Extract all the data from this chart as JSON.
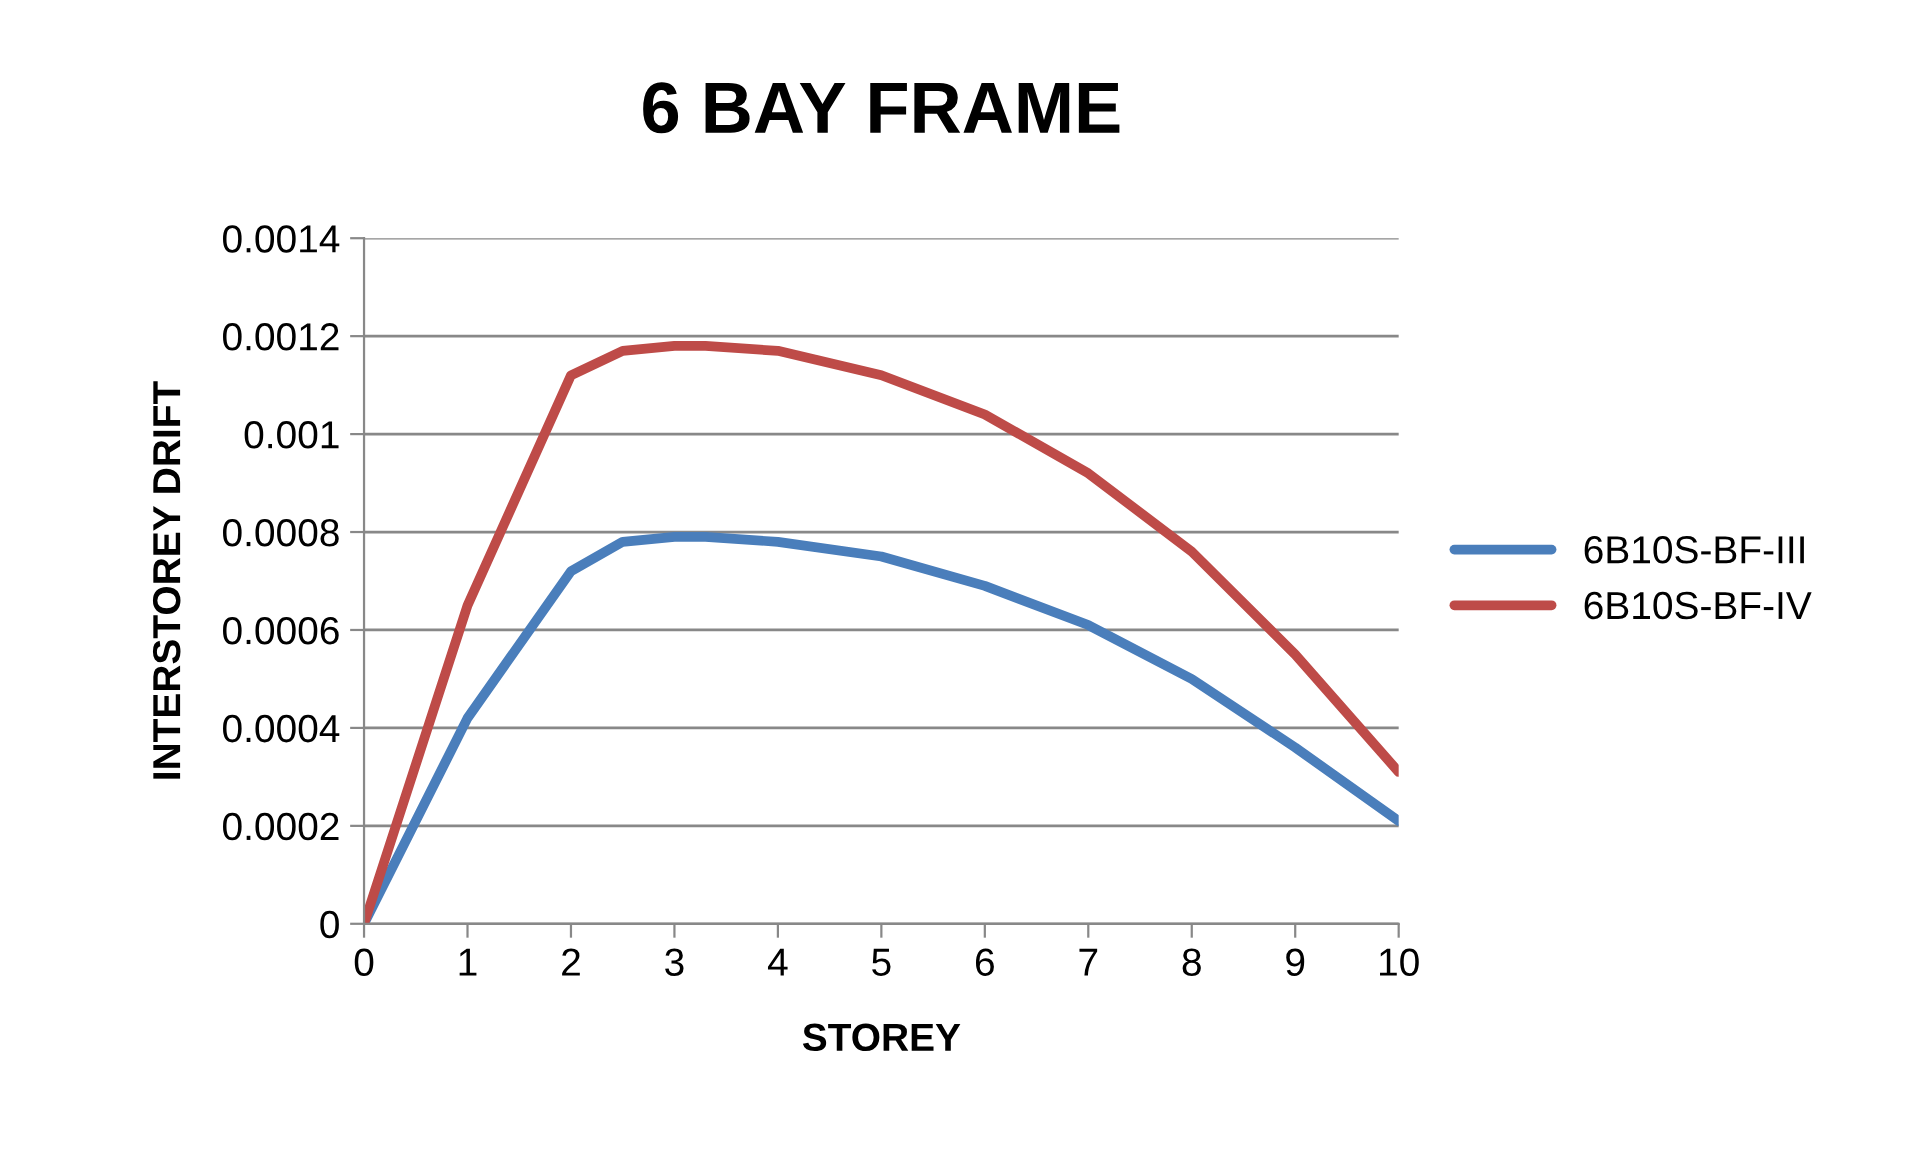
{
  "chart_data": {
    "type": "line",
    "title": "6 BAY FRAME",
    "xlabel": "STOREY",
    "ylabel": "INTERSTOREY DRIFT",
    "x": [
      0,
      1,
      2,
      2.5,
      3,
      3.3,
      4,
      5,
      6,
      7,
      8,
      9,
      10
    ],
    "series": [
      {
        "name": "6B10S-BF-III",
        "color": "#4a7ebb",
        "values": [
          0,
          0.00042,
          0.00072,
          0.00078,
          0.00079,
          0.00079,
          0.00078,
          0.00075,
          0.00069,
          0.00061,
          0.0005,
          0.00036,
          0.00021
        ]
      },
      {
        "name": "6B10S-BF-IV",
        "color": "#be4b48",
        "values": [
          0,
          0.00065,
          0.00112,
          0.00117,
          0.00118,
          0.00118,
          0.00117,
          0.00112,
          0.00104,
          0.00092,
          0.00076,
          0.00055,
          0.00031
        ]
      }
    ],
    "xlim": [
      0,
      10
    ],
    "xticks": [
      0,
      1,
      2,
      3,
      4,
      5,
      6,
      7,
      8,
      9,
      10
    ],
    "ylim": [
      0,
      0.0014
    ],
    "yticks": [
      0,
      0.0002,
      0.0004,
      0.0006,
      0.0008,
      0.001,
      0.0012,
      0.0014
    ],
    "grid": "y",
    "legend": "right",
    "marker": "none",
    "line_style": "solid"
  }
}
